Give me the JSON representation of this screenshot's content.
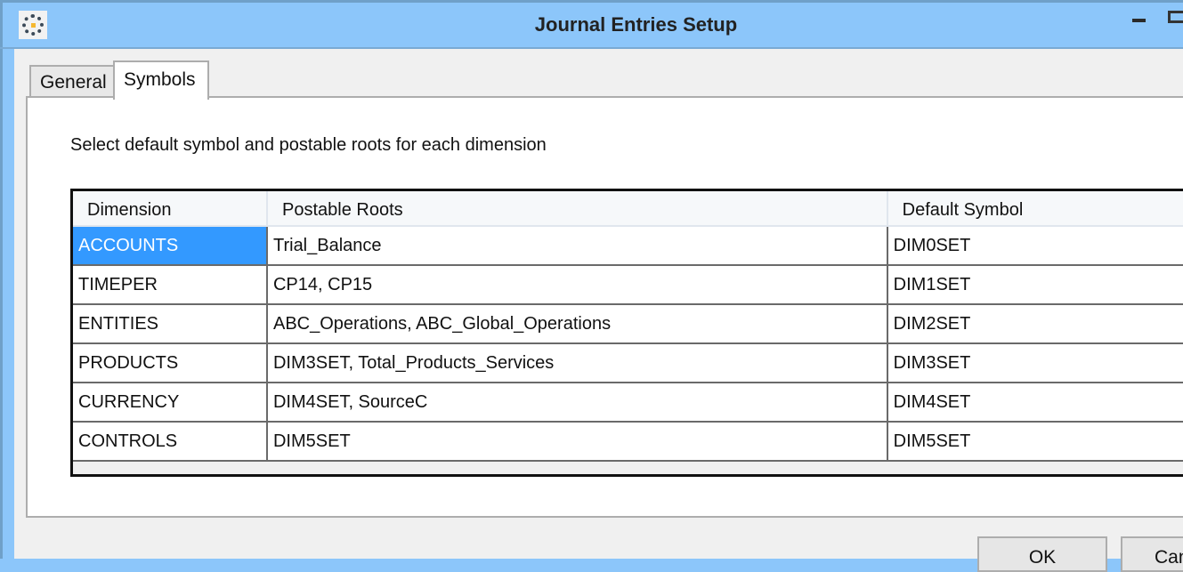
{
  "window": {
    "title": "Journal Entries Setup",
    "icon": "app-gear-icon"
  },
  "tabs": [
    {
      "label": "General",
      "active": false
    },
    {
      "label": "Symbols",
      "active": true
    }
  ],
  "description": "Select default symbol and postable roots for each dimension",
  "table": {
    "columns": [
      "Dimension",
      "Postable Roots",
      "Default Symbol"
    ],
    "rows": [
      [
        "ACCOUNTS",
        "Trial_Balance",
        "DIM0SET"
      ],
      [
        "TIMEPER",
        "CP14, CP15",
        "DIM1SET"
      ],
      [
        "ENTITIES",
        "ABC_Operations, ABC_Global_Operations",
        "DIM2SET"
      ],
      [
        "PRODUCTS",
        "DIM3SET, Total_Products_Services",
        "DIM3SET"
      ],
      [
        "CURRENCY",
        "DIM4SET, SourceC",
        "DIM4SET"
      ],
      [
        "CONTROLS",
        "DIM5SET",
        "DIM5SET"
      ]
    ],
    "selected_row": 0
  },
  "buttons": {
    "ok": "OK",
    "cancel": "Can"
  },
  "colors": {
    "titlebar": "#8cc6fa",
    "selection": "#3399ff"
  }
}
